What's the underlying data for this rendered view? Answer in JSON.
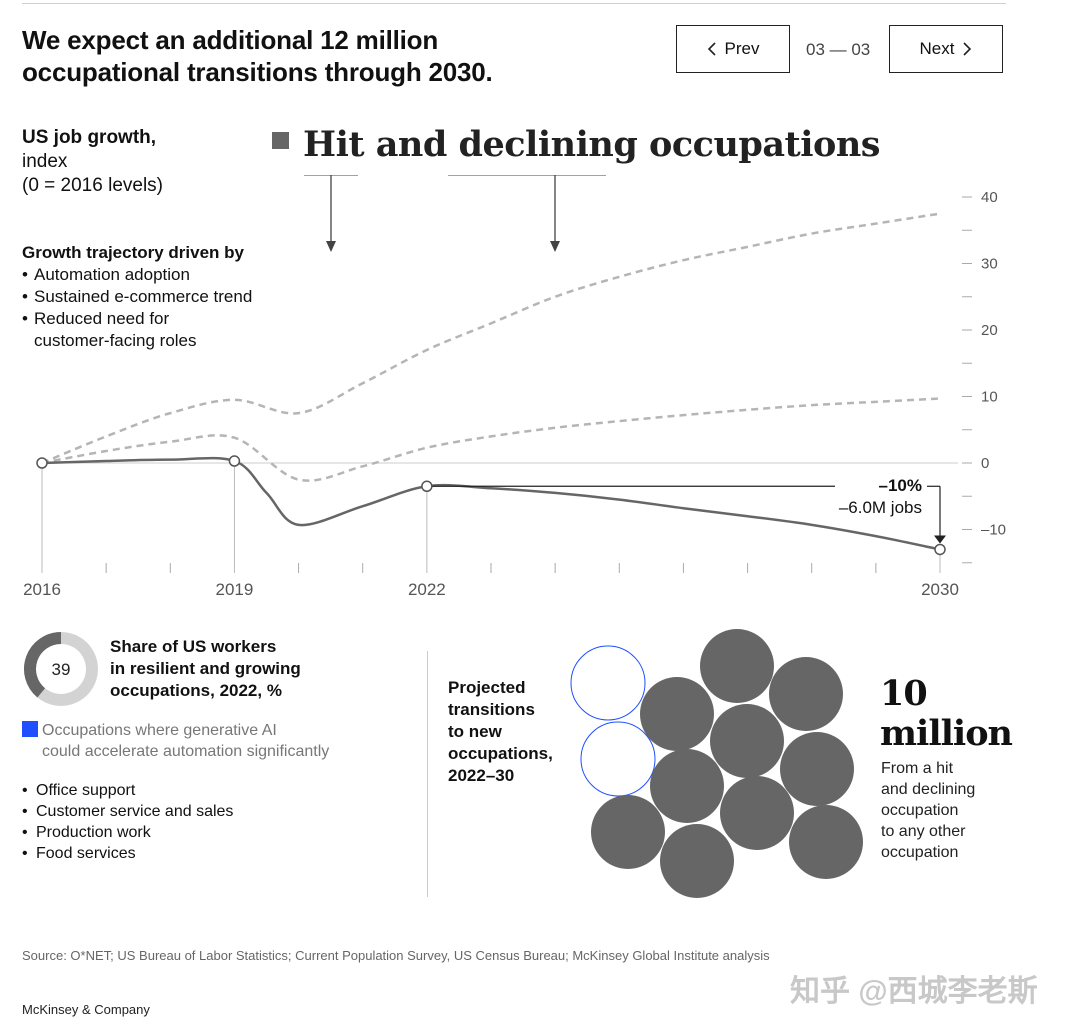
{
  "header": {
    "title_line1": "We expect an additional 12 million",
    "title_line2": "occupational transitions through 2030.",
    "prev_label": "Prev",
    "next_label": "Next",
    "pager": "03 — 03"
  },
  "chart_meta": {
    "ylabel_bold": "US job growth,",
    "ylabel_line2": "index",
    "ylabel_line3": "(0 = 2016 levels)",
    "section_title": "Hit and declining occupations",
    "driven_heading": "Growth trajectory driven by",
    "driven_items": [
      "Automation adoption",
      "Sustained e-commerce trend",
      "Reduced need for",
      "customer-facing roles"
    ],
    "annotation_pct": "–10%",
    "annotation_jobs": "–6.0M jobs"
  },
  "chart_data": {
    "type": "line",
    "xlabel": "",
    "ylabel": "US job growth, index (0 = 2016 levels)",
    "x_ticks": [
      "2016",
      "2019",
      "2022",
      "2030"
    ],
    "y_ticks": [
      "40",
      "30",
      "20",
      "10",
      "0",
      "–10"
    ],
    "xlim": [
      2016,
      2030
    ],
    "ylim": [
      -15,
      42
    ],
    "series": [
      {
        "style": "dashed",
        "x": [
          2016,
          2017,
          2018,
          2019,
          2020,
          2021,
          2022,
          2023,
          2024,
          2025,
          2026,
          2027,
          2028,
          2029,
          2030
        ],
        "y": [
          0,
          4,
          7.5,
          9.5,
          7.5,
          12,
          17,
          21,
          25,
          28,
          30.5,
          32.5,
          34.5,
          36,
          37.5
        ]
      },
      {
        "style": "dashed",
        "x": [
          2016,
          2017,
          2018,
          2019,
          2020,
          2021,
          2022,
          2023,
          2024,
          2025,
          2026,
          2027,
          2028,
          2029,
          2030
        ],
        "y": [
          0,
          1.8,
          3.2,
          3.8,
          -2.5,
          -0.5,
          2.3,
          4,
          5.3,
          6.3,
          7.2,
          8,
          8.7,
          9.2,
          9.7
        ]
      },
      {
        "style": "solid",
        "x": [
          2016,
          2017,
          2018,
          2019,
          2019.5,
          2020,
          2021,
          2022,
          2023,
          2024,
          2025,
          2026,
          2027,
          2028,
          2029,
          2030
        ],
        "y": [
          0,
          0.3,
          0.5,
          0.3,
          -4.5,
          -9.3,
          -6.5,
          -3.5,
          -3.8,
          -4.5,
          -5.5,
          -6.8,
          -8,
          -9.3,
          -11,
          -13
        ]
      }
    ],
    "markers": [
      {
        "x": 2016,
        "y": 0
      },
      {
        "x": 2019,
        "y": 0.3
      },
      {
        "x": 2022,
        "y": -3.5
      },
      {
        "x": 2030,
        "y": -13
      }
    ]
  },
  "bottom": {
    "donut_value": "39",
    "donut_fraction": 0.39,
    "share_l1": "Share of US workers",
    "share_l2": "in resilient and growing",
    "share_l3": "occupations, 2022, %",
    "legend_l1": "Occupations where generative AI",
    "legend_l2": "could accelerate automation significantly",
    "occupations": [
      "Office support",
      "Customer service and sales",
      "Production work",
      "Food services"
    ],
    "proj_l1": "Projected",
    "proj_l2": "transitions",
    "proj_l3": "to new",
    "proj_l4": "occupations,",
    "proj_l5": "2022–30",
    "bubble_count": 12,
    "bubble_outline_count": 2,
    "million_l1": "10",
    "million_l2": "million",
    "mdesc_l1": "From a hit",
    "mdesc_l2": "and declining",
    "mdesc_l3": "occupation",
    "mdesc_l4": "to any other",
    "mdesc_l5": "occupation"
  },
  "footer": {
    "source": "Source: O*NET; US Bureau of Labor Statistics; Current Population Survey, US Census Bureau; McKinsey Global Institute analysis",
    "brand": "McKinsey & Company",
    "watermark": "知乎 @西城李老斯"
  },
  "colors": {
    "solid_line": "#666666",
    "dashed_line": "#b5b5b5",
    "bubble": "#666666",
    "bubble_outline": "#1f4fff",
    "legend_swatch": "#1f4fff"
  }
}
